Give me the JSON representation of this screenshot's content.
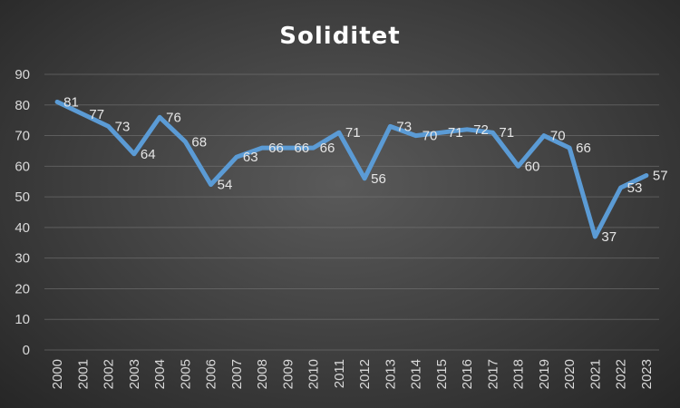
{
  "chart_data": {
    "type": "line",
    "title": "Soliditet",
    "xlabel": "",
    "ylabel": "",
    "ylim": [
      0,
      90
    ],
    "yticks": [
      0,
      10,
      20,
      30,
      40,
      50,
      60,
      70,
      80,
      90
    ],
    "grid": true,
    "legend": "none",
    "line_color": "#5b9bd5",
    "categories": [
      "2000",
      "2001",
      "2002",
      "2003",
      "2004",
      "2005",
      "2006",
      "2007",
      "2008",
      "2009",
      "2010",
      "2011",
      "2012",
      "2013",
      "2014",
      "2015",
      "2016",
      "2017",
      "2018",
      "2019",
      "2020",
      "2021",
      "2022",
      "2023"
    ],
    "values": [
      81,
      77,
      73,
      64,
      76,
      68,
      54,
      63,
      66,
      66,
      66,
      71,
      56,
      73,
      70,
      71,
      72,
      71,
      60,
      70,
      66,
      37,
      53,
      57
    ],
    "data_labels": [
      "81",
      "77",
      "73",
      "64",
      "76",
      "68",
      "54",
      "63",
      "66",
      "66",
      "66",
      "71",
      "56",
      "73",
      "70",
      "71",
      "72",
      "71",
      "60",
      "70",
      "66",
      "37",
      "53",
      "57"
    ]
  }
}
